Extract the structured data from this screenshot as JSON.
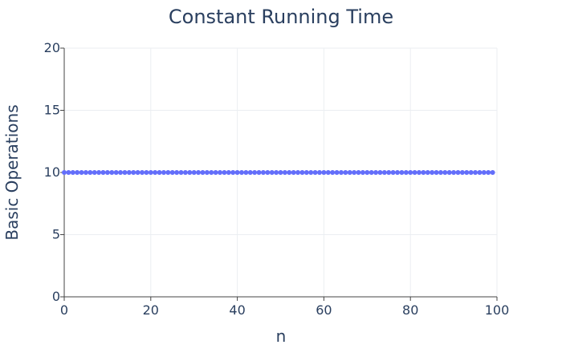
{
  "chart_data": {
    "type": "scatter",
    "title": "Constant Running Time",
    "xlabel": "n",
    "ylabel": "Basic Operations",
    "xlim": [
      0,
      100
    ],
    "ylim": [
      0,
      20
    ],
    "x_ticks": [
      0,
      20,
      40,
      60,
      80,
      100
    ],
    "y_ticks": [
      0,
      5,
      10,
      15,
      20
    ],
    "grid": true,
    "legend": false,
    "series": [
      {
        "x": [
          0,
          1,
          2,
          3,
          4,
          5,
          6,
          7,
          8,
          9,
          10,
          11,
          12,
          13,
          14,
          15,
          16,
          17,
          18,
          19,
          20,
          21,
          22,
          23,
          24,
          25,
          26,
          27,
          28,
          29,
          30,
          31,
          32,
          33,
          34,
          35,
          36,
          37,
          38,
          39,
          40,
          41,
          42,
          43,
          44,
          45,
          46,
          47,
          48,
          49,
          50,
          51,
          52,
          53,
          54,
          55,
          56,
          57,
          58,
          59,
          60,
          61,
          62,
          63,
          64,
          65,
          66,
          67,
          68,
          69,
          70,
          71,
          72,
          73,
          74,
          75,
          76,
          77,
          78,
          79,
          80,
          81,
          82,
          83,
          84,
          85,
          86,
          87,
          88,
          89,
          90,
          91,
          92,
          93,
          94,
          95,
          96,
          97,
          98,
          99
        ],
        "y": [
          10,
          10,
          10,
          10,
          10,
          10,
          10,
          10,
          10,
          10,
          10,
          10,
          10,
          10,
          10,
          10,
          10,
          10,
          10,
          10,
          10,
          10,
          10,
          10,
          10,
          10,
          10,
          10,
          10,
          10,
          10,
          10,
          10,
          10,
          10,
          10,
          10,
          10,
          10,
          10,
          10,
          10,
          10,
          10,
          10,
          10,
          10,
          10,
          10,
          10,
          10,
          10,
          10,
          10,
          10,
          10,
          10,
          10,
          10,
          10,
          10,
          10,
          10,
          10,
          10,
          10,
          10,
          10,
          10,
          10,
          10,
          10,
          10,
          10,
          10,
          10,
          10,
          10,
          10,
          10,
          10,
          10,
          10,
          10,
          10,
          10,
          10,
          10,
          10,
          10,
          10,
          10,
          10,
          10,
          10,
          10,
          10,
          10,
          10,
          10
        ],
        "color": "#636efa"
      }
    ]
  }
}
